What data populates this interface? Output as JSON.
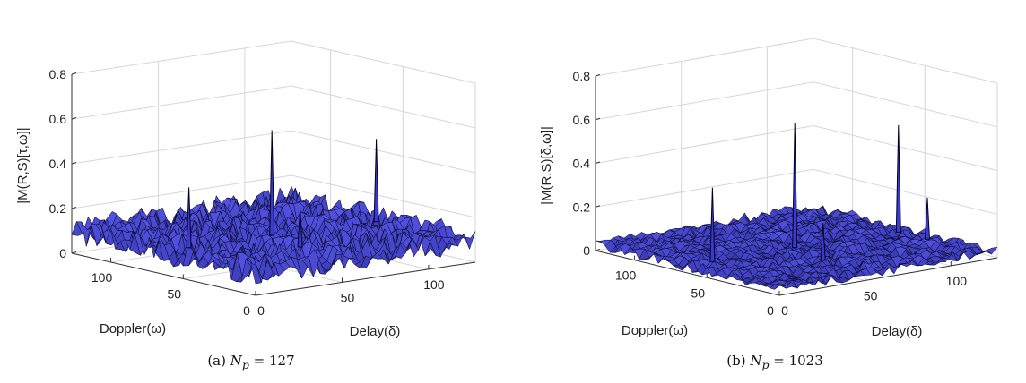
{
  "chart_data": [
    {
      "type": "surface",
      "panel_label": "(a)",
      "caption_var": "N",
      "caption_sub": "p",
      "caption_value": "127",
      "zlabel": "|M(R,S)[τ,ω]|",
      "xlabel": "Delay(δ)",
      "ylabel": "Doppler(ω)",
      "zlim": [
        0,
        0.8
      ],
      "z_ticks": [
        "0",
        "0.2",
        "0.4",
        "0.6",
        "0.8"
      ],
      "delay_ticks": [
        "0",
        "50",
        "100"
      ],
      "doppler_ticks": [
        "0",
        "50",
        "100"
      ],
      "grid": true,
      "noise_floor": 0.1,
      "noise_spread": 0.06,
      "peaks": [
        {
          "delay": 63,
          "doppler": 64,
          "value": 0.57
        },
        {
          "delay": 120,
          "doppler": 60,
          "value": 0.47
        },
        {
          "delay": 15,
          "doppler": 64,
          "value": 0.37
        },
        {
          "delay": 55,
          "doppler": 35,
          "value": 0.27
        }
      ]
    },
    {
      "type": "surface",
      "panel_label": "(b)",
      "caption_var": "N",
      "caption_sub": "p",
      "caption_value": "1023",
      "zlabel": "|M(R,S)[δ,ω]|",
      "xlabel": "Delay(δ)",
      "ylabel": "Doppler(ω)",
      "zlim": [
        0,
        0.8
      ],
      "z_ticks": [
        "0",
        "0.2",
        "0.4",
        "0.6",
        "0.8"
      ],
      "delay_ticks": [
        "0",
        "50",
        "100"
      ],
      "doppler_ticks": [
        "0",
        "50",
        "100"
      ],
      "grid": true,
      "noise_floor": 0.03,
      "noise_spread": 0.025,
      "peaks": [
        {
          "delay": 63,
          "doppler": 64,
          "value": 0.6
        },
        {
          "delay": 120,
          "doppler": 60,
          "value": 0.52
        },
        {
          "delay": 15,
          "doppler": 64,
          "value": 0.37
        },
        {
          "delay": 55,
          "doppler": 35,
          "value": 0.2
        },
        {
          "delay": 120,
          "doppler": 40,
          "value": 0.22
        }
      ]
    }
  ]
}
